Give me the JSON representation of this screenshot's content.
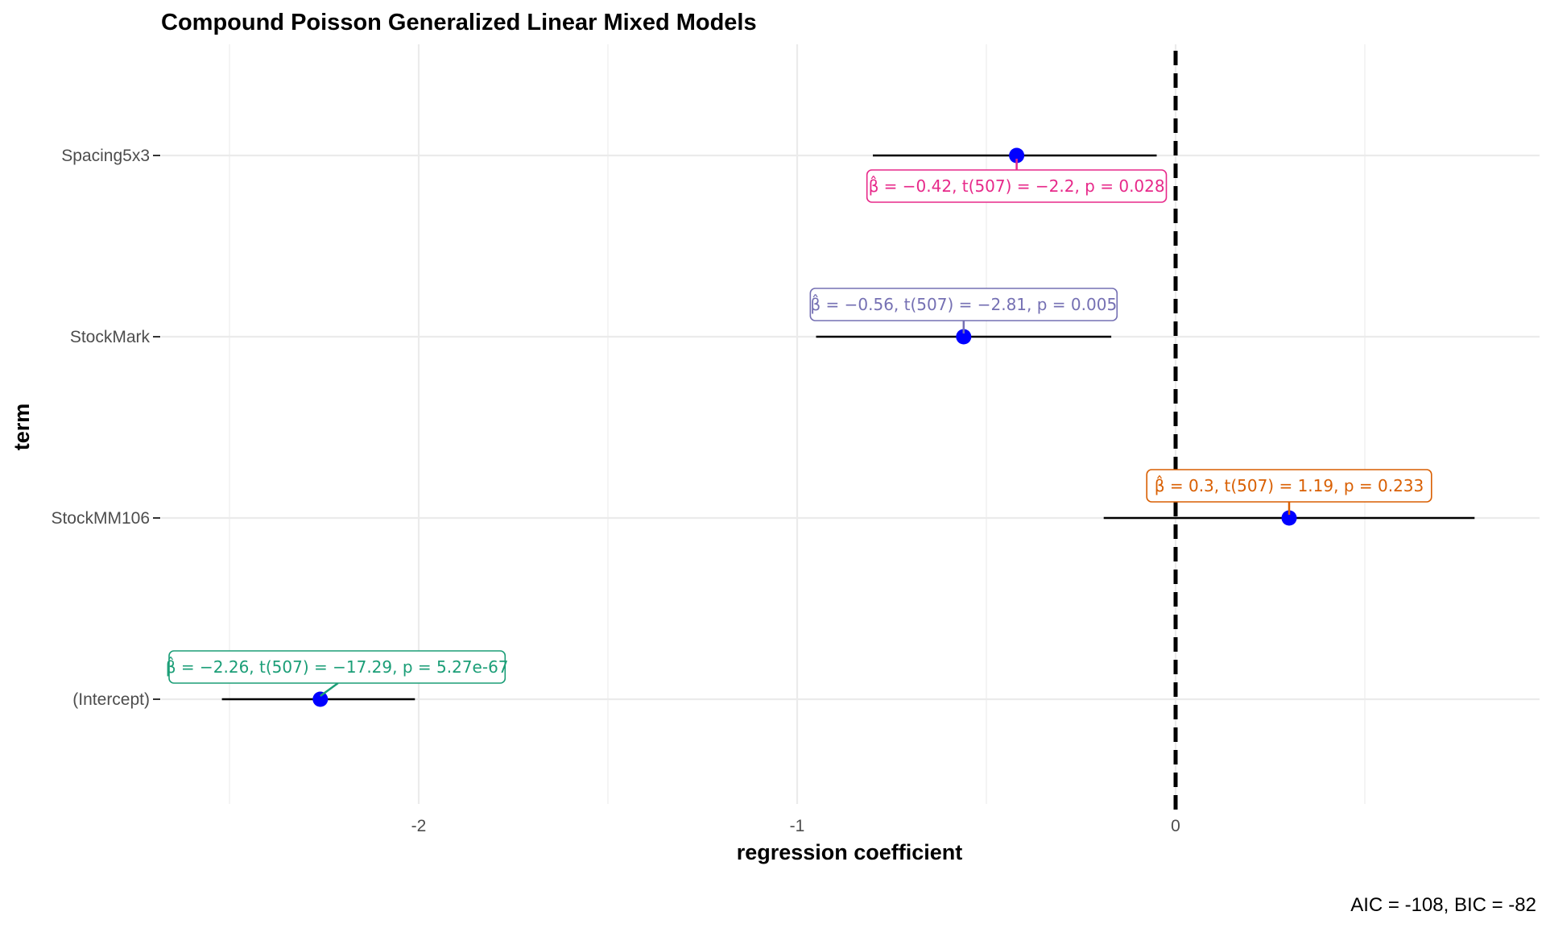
{
  "chart_data": {
    "type": "scatter",
    "title": "Compound Poisson Generalized Linear Mixed Models",
    "xlabel": "regression coefficient",
    "ylabel": "term",
    "caption": "AIC = -108, BIC = -82",
    "xlim": [
      -2.7,
      0.96
    ],
    "x_ticks": [
      -2,
      -1,
      0
    ],
    "x_tick_labels": [
      "-2",
      "-1",
      "0"
    ],
    "reference_line_x": 0,
    "grid": true,
    "point_color": "#0000ff",
    "terms": [
      {
        "name": "Spacing5x3",
        "estimate": -0.42,
        "ci_low": -0.8,
        "ci_high": -0.05,
        "label": "β̂ = −0.42,  t(507) = −2.2,  p = 0.028",
        "label_color": "#e7298a",
        "label_position": "below"
      },
      {
        "name": "StockMark",
        "estimate": -0.56,
        "ci_low": -0.95,
        "ci_high": -0.17,
        "label": "β̂ = −0.56,  t(507) = −2.81,  p = 0.005",
        "label_color": "#7570b3",
        "label_position": "above"
      },
      {
        "name": "StockMM106",
        "estimate": 0.3,
        "ci_low": -0.19,
        "ci_high": 0.79,
        "label": "β̂ = 0.3,  t(507) = 1.19,  p = 0.233",
        "label_color": "#d95f02",
        "label_position": "above"
      },
      {
        "name": "(Intercept)",
        "estimate": -2.26,
        "ci_low": -2.52,
        "ci_high": -2.01,
        "label": "β̂ = −2.26,  t(507) = −17.29,  p = 5.27e-67",
        "label_color": "#1b9e77",
        "label_position": "above"
      }
    ]
  }
}
